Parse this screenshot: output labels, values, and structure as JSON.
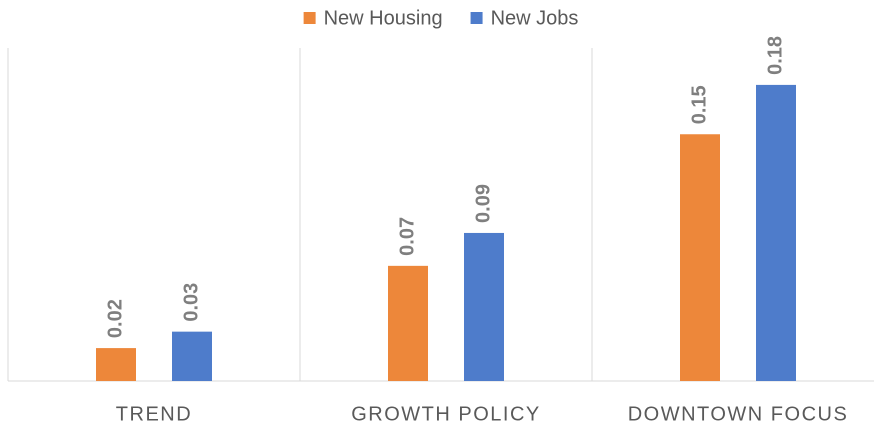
{
  "chart_data": {
    "type": "bar",
    "categories": [
      "TREND",
      "GROWTH POLICY",
      "DOWNTOWN FOCUS"
    ],
    "series": [
      {
        "name": "New Housing",
        "color": "#ED873A",
        "values": [
          0.02,
          0.07,
          0.15
        ]
      },
      {
        "name": "New Jobs",
        "color": "#4E7CCB",
        "values": [
          0.03,
          0.09,
          0.18
        ]
      }
    ],
    "ylim": [
      0,
      0.2
    ],
    "legend": "top"
  }
}
